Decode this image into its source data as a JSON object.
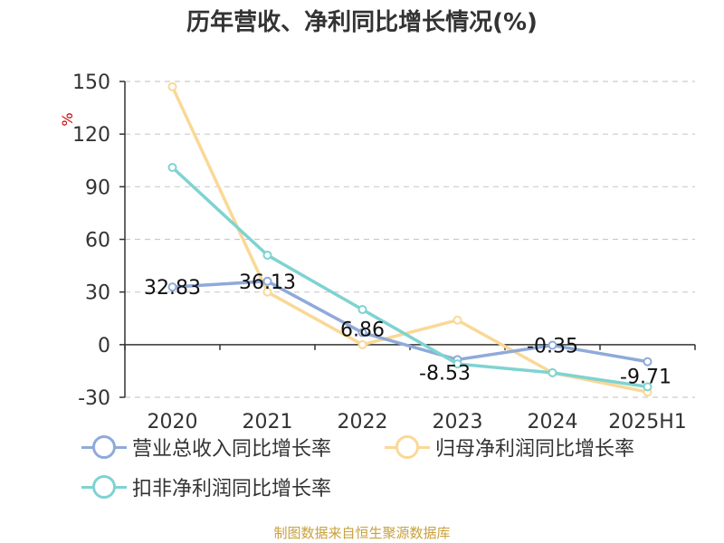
{
  "title": "历年营收、净利同比增长情况(%)",
  "source": "制图数据来自恒生聚源数据库",
  "colors": {
    "revenue": "#8faad9",
    "net_profit": "#fad896",
    "deducted": "#7fd3d2",
    "axis": "#333333",
    "grid": "#cccccc",
    "unit": "#cc0000",
    "source": "#c9a03c"
  },
  "chart_data": {
    "type": "line",
    "title": "历年营收、净利同比增长情况(%)",
    "ylabel": "%",
    "xlabel": "",
    "ylim": [
      -30,
      150
    ],
    "yticks": [
      150,
      120,
      90,
      60,
      30,
      0,
      -30
    ],
    "categories": [
      "2020",
      "2021",
      "2022",
      "2023",
      "2024",
      "2025H1"
    ],
    "grid": true,
    "legend_position": "bottom",
    "series": [
      {
        "name": "营业总收入同比增长率",
        "values": [
          32.83,
          36.13,
          6.86,
          -8.53,
          -0.35,
          -9.71
        ],
        "labels": [
          "32.83",
          "36.13",
          "6.86",
          "-8.53",
          "-0.35",
          "-9.71"
        ],
        "color": "#8faad9"
      },
      {
        "name": "归母净利润同比增长率",
        "values": [
          147,
          30,
          0,
          14,
          -16,
          -27
        ],
        "color": "#fad896"
      },
      {
        "name": "扣非净利润同比增长率",
        "values": [
          101,
          51,
          20,
          -11,
          -16,
          -24
        ],
        "color": "#7fd3d2"
      }
    ]
  }
}
